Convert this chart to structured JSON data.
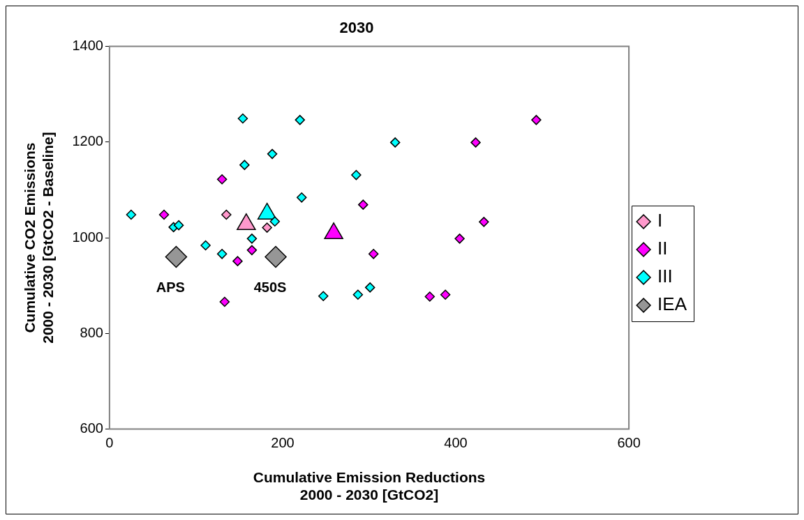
{
  "chart_data": {
    "type": "scatter",
    "title": "2030",
    "xlabel": "Cumulative Emission Reductions\n2000 - 2030 [GtCO2]",
    "ylabel": "Cumulative CO2 Emissions\n2000 - 2030 [GtCO2 - Baseline]",
    "xlim": [
      0,
      600
    ],
    "xticks": [
      0,
      200,
      400,
      600
    ],
    "ylim": [
      600,
      1400
    ],
    "yticks": [
      600,
      800,
      1000,
      1200,
      1400
    ],
    "legend": "right",
    "marker": "diamond",
    "series": [
      {
        "name": "I",
        "color": "#ff99cc",
        "x": [
          135,
          182
        ],
        "values": [
          1048,
          1021
        ]
      },
      {
        "name": "II",
        "color": "#ff00ff",
        "x": [
          130,
          293,
          63,
          164.5,
          148,
          305,
          133,
          493,
          423,
          432.5,
          404.5,
          370,
          388
        ],
        "values": [
          1122,
          1069,
          1048,
          974,
          951,
          966,
          866,
          1246,
          1199,
          1033,
          998,
          877,
          881
        ]
      },
      {
        "name": "III",
        "color": "#00ffff",
        "x": [
          154,
          220,
          188,
          156,
          285,
          222,
          25,
          74,
          80,
          191,
          164.5,
          111,
          130,
          247,
          287,
          301,
          330
        ],
        "values": [
          1249,
          1246,
          1175,
          1152,
          1131,
          1084,
          1048,
          1022,
          1026,
          1034,
          998,
          984,
          966,
          878,
          881,
          896,
          1199
        ]
      },
      {
        "name": "IEA",
        "color": "#969696",
        "x": [
          77,
          192
        ],
        "values": [
          960,
          960
        ]
      },
      {
        "color": "#ff99cc",
        "marker": "triangle",
        "x": [
          158
        ],
        "values": [
          1028
        ]
      },
      {
        "color": "#00ffff",
        "marker": "triangle",
        "x": [
          182
        ],
        "values": [
          1050
        ]
      },
      {
        "color": "#ff00ff",
        "marker": "triangle",
        "x": [
          259
        ],
        "values": [
          1009
        ]
      }
    ],
    "annotations": [
      {
        "text": "APS",
        "x": 77,
        "y": 960
      },
      {
        "text": "450S",
        "x": 192,
        "y": 960
      }
    ]
  }
}
